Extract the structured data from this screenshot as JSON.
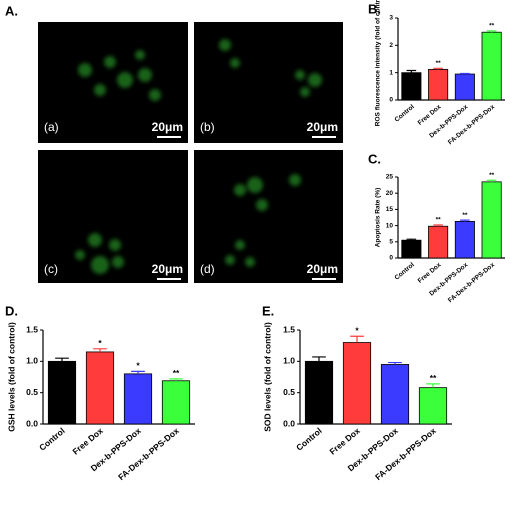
{
  "panel_a": {
    "panel_label": "A.",
    "images": [
      {
        "label": "(a)",
        "scale": "20μm"
      },
      {
        "label": "(b)",
        "scale": "20μm"
      },
      {
        "label": "(c)",
        "scale": "20μm"
      },
      {
        "label": "(d)",
        "scale": "20μm"
      }
    ]
  },
  "chart_data": [
    {
      "type": "bar",
      "panel_label": "B.",
      "ylabel": "ROS fluorescence intensity (fold of control)",
      "categories": [
        "Control",
        "Free Dox",
        "Dex-b-PPS-Dox",
        "FA-Dex-b-PPS-Dox"
      ],
      "colors": [
        "#000000",
        "#ff3b3b",
        "#3b3bff",
        "#3bff3b"
      ],
      "values": [
        1.0,
        1.12,
        0.95,
        2.48
      ],
      "errors": [
        0.08,
        0.04,
        0.02,
        0.05
      ],
      "significance": [
        null,
        "**",
        null,
        "**"
      ],
      "ylim": [
        0,
        3
      ],
      "yticks": [
        0,
        1,
        2,
        3
      ]
    },
    {
      "type": "bar",
      "panel_label": "C.",
      "ylabel": "Apoptosis Rate (%)",
      "categories": [
        "Control",
        "Free Dox",
        "Dex-b-PPS-Dox",
        "FA-Dex-b-PPS-Dox"
      ],
      "colors": [
        "#000000",
        "#ff3b3b",
        "#3b3bff",
        "#3bff3b"
      ],
      "values": [
        5.5,
        9.8,
        11.3,
        23.5
      ],
      "errors": [
        0.3,
        0.4,
        0.4,
        0.5
      ],
      "significance": [
        null,
        "**",
        "**",
        "**"
      ],
      "ylim": [
        0,
        25
      ],
      "yticks": [
        0,
        5,
        10,
        15,
        20,
        25
      ]
    },
    {
      "type": "bar",
      "panel_label": "D.",
      "ylabel": "GSH levels (fold of control)",
      "categories": [
        "Control",
        "Free Dox",
        "Dex-b-PPS-Dox",
        "FA-Dex-b-PPS-Dox"
      ],
      "colors": [
        "#000000",
        "#ff3b3b",
        "#3b3bff",
        "#3bff3b"
      ],
      "values": [
        1.0,
        1.15,
        0.8,
        0.69
      ],
      "errors": [
        0.05,
        0.05,
        0.04,
        0.03
      ],
      "significance": [
        null,
        "*",
        "*",
        "**"
      ],
      "ylim": [
        0,
        1.5
      ],
      "yticks": [
        {
          "value": 0,
          "label": "0.0"
        },
        0.5,
        {
          "value": 1,
          "label": "1.0"
        },
        1.5
      ]
    },
    {
      "type": "bar",
      "panel_label": "E.",
      "ylabel": "SOD levels (fold of control)",
      "categories": [
        "Control",
        "Free Dox",
        "Dex-b-PPS-Dox",
        "FA-Dex-b-PPS-Dox"
      ],
      "colors": [
        "#000000",
        "#ff3b3b",
        "#3b3bff",
        "#3bff3b"
      ],
      "values": [
        1.0,
        1.3,
        0.95,
        0.58
      ],
      "errors": [
        0.07,
        0.1,
        0.03,
        0.06
      ],
      "significance": [
        null,
        "*",
        null,
        "**"
      ],
      "ylim": [
        0,
        1.5
      ],
      "yticks": [
        {
          "value": 0,
          "label": "0.0"
        },
        0.5,
        {
          "value": 1,
          "label": "1.0"
        },
        1.5
      ]
    }
  ]
}
